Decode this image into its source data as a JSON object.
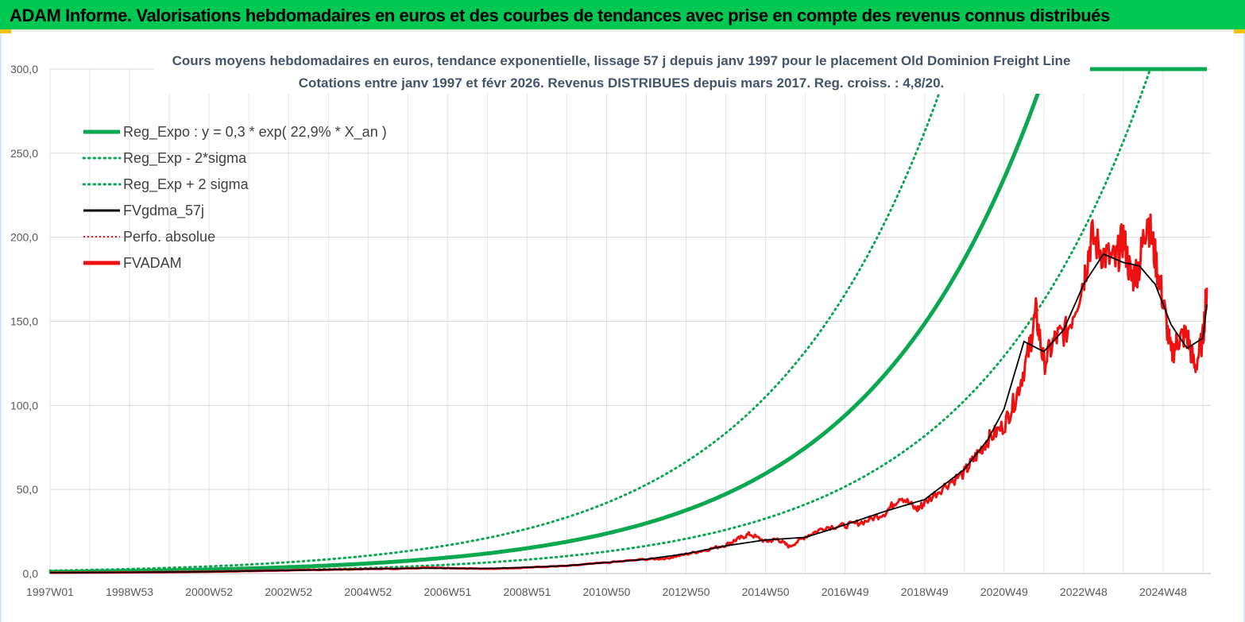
{
  "banner": {
    "title": "ADAM Informe. Valorisations hebdomadaires en euros et des courbes de tendances avec prise en compte des revenus connus distribués"
  },
  "colors": {
    "banner_bg": "#00c853",
    "trend_green": "#0aa84f",
    "fv_black": "#000000",
    "fvadam_red": "#ee1111",
    "grid": "#d9d9d9"
  },
  "chart_data": {
    "type": "line",
    "title_line1": "Cours moyens hebdomadaires en euros, tendance exponentielle, lissage 57 j depuis janv 1997  pour le placement Old Dominion Freight Line",
    "title_line2": "Cotations entre janv 1997  et févr  2026. Revenus DISTRIBUES depuis mars  2017. Reg.  croiss. : 4,8/20.",
    "x_ticks": [
      "1997W01",
      "1998W53",
      "2000W52",
      "2002W52",
      "2004W52",
      "2006W51",
      "2008W51",
      "2010W50",
      "2012W50",
      "2014W50",
      "2016W49",
      "2018W49",
      "2020W49",
      "2022W48",
      "2024W48"
    ],
    "x_range": [
      1997.0,
      2026.2
    ],
    "ylim": [
      0,
      300
    ],
    "y_ticks": [
      "0,0",
      "50,0",
      "100,0",
      "150,0",
      "200,0",
      "250,0",
      "300,0"
    ],
    "legend": [
      {
        "label": "Reg_Expo : y = 0,3  * exp( 22,9% *  X_an )",
        "style": "thick",
        "color": "#0aa84f"
      },
      {
        "label": "Reg_Exp - 2*sigma",
        "style": "dotted",
        "color": "#0aa84f"
      },
      {
        "label": "Reg_Exp + 2 sigma",
        "style": "dotted",
        "color": "#0aa84f"
      },
      {
        "label": "FVgdma_57j",
        "style": "solid",
        "color": "#000000"
      },
      {
        "label": "Perfo. absolue",
        "style": "dotted-thin",
        "color": "#ee1111"
      },
      {
        "label": "FVADAM",
        "style": "thick",
        "color": "#ee1111"
      }
    ],
    "series": [
      {
        "name": "Reg_Expo",
        "model": "exp",
        "a": 0.3,
        "rate": 0.229,
        "cap": 300
      },
      {
        "name": "Reg_Exp - 2*sigma",
        "model": "exp",
        "a": 0.165,
        "rate": 0.229,
        "cap": 300
      },
      {
        "name": "Reg_Exp + 2 sigma",
        "model": "exp",
        "a": 0.53,
        "rate": 0.229,
        "cap": 300
      },
      {
        "name": "FVADAM",
        "x": [
          1997.0,
          1998.0,
          1999.0,
          2000.0,
          2001.0,
          2002.0,
          2003.0,
          2004.0,
          2005.0,
          2006.0,
          2006.5,
          2007.0,
          2008.0,
          2009.0,
          2010.0,
          2011.0,
          2012.0,
          2012.5,
          2013.0,
          2013.5,
          2014.0,
          2014.3,
          2014.6,
          2015.0,
          2015.3,
          2015.6,
          2016.0,
          2016.5,
          2017.0,
          2017.5,
          2018.0,
          2018.4,
          2018.8,
          2019.0,
          2019.5,
          2020.0,
          2020.3,
          2020.6,
          2021.0,
          2021.3,
          2021.6,
          2021.8,
          2022.0,
          2022.3,
          2022.6,
          2023.0,
          2023.2,
          2023.5,
          2023.8,
          2024.0,
          2024.2,
          2024.4,
          2024.6,
          2024.8,
          2025.0,
          2025.2,
          2025.4,
          2025.6,
          2025.8,
          2026.0,
          2026.1
        ],
        "values": [
          0.5,
          0.6,
          0.7,
          0.9,
          1.1,
          1.5,
          1.9,
          2.3,
          2.7,
          3.0,
          3.6,
          3.3,
          2.8,
          3.6,
          4.5,
          6.5,
          8.5,
          9.0,
          11.5,
          14.0,
          17.0,
          20.5,
          23.5,
          19.0,
          20.5,
          16.0,
          22.0,
          27.5,
          28.5,
          31.0,
          36.0,
          46.0,
          38.0,
          42.0,
          52.0,
          60.0,
          70.0,
          80.0,
          88.0,
          105.0,
          130.0,
          155.0,
          125.0,
          140.0,
          145.0,
          175.0,
          200.0,
          190.0,
          185.0,
          200.0,
          175.0,
          183.0,
          213.0,
          188.0,
          162.0,
          130.0,
          140.0,
          142.0,
          122.0,
          140.0,
          170.0
        ]
      },
      {
        "name": "FVgdma_57j",
        "x": [
          1997.0,
          1998.0,
          1999.0,
          2000.0,
          2001.0,
          2002.0,
          2003.0,
          2004.0,
          2005.0,
          2006.0,
          2007.0,
          2008.0,
          2009.0,
          2010.0,
          2011.0,
          2012.0,
          2013.0,
          2014.0,
          2015.0,
          2016.0,
          2017.0,
          2018.0,
          2019.0,
          2020.0,
          2020.6,
          2021.0,
          2021.5,
          2022.0,
          2022.5,
          2023.0,
          2023.5,
          2024.0,
          2024.4,
          2024.8,
          2025.2,
          2025.6,
          2026.0,
          2026.1
        ],
        "values": [
          0.5,
          0.6,
          0.7,
          0.9,
          1.1,
          1.5,
          1.9,
          2.3,
          2.7,
          3.1,
          3.1,
          3.0,
          3.7,
          4.7,
          6.6,
          8.5,
          11.8,
          16.5,
          20.0,
          21.5,
          29.0,
          37.0,
          44.0,
          62.0,
          80.0,
          98.0,
          138.0,
          132.0,
          145.0,
          172.0,
          190.0,
          185.0,
          183.0,
          172.0,
          148.0,
          134.0,
          140.0,
          160.0
        ]
      }
    ]
  }
}
